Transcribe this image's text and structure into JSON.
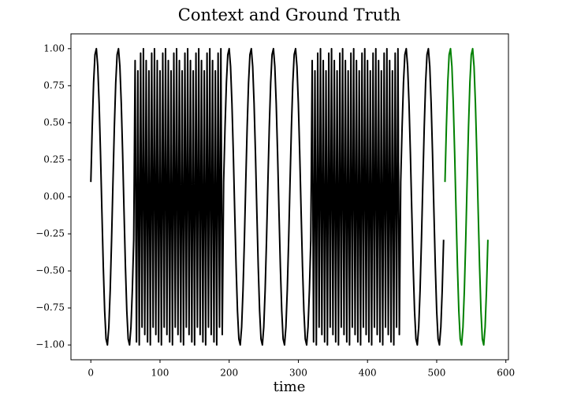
{
  "chart_data": {
    "type": "line",
    "title": "Context and Ground Truth",
    "x_label": "time",
    "xlim": [
      -28.75,
      603.75
    ],
    "ylim": [
      -1.1,
      1.1
    ],
    "xticks": [
      0,
      100,
      200,
      300,
      400,
      500,
      600
    ],
    "yticks": [
      {
        "value": -1,
        "label": "−1.00"
      },
      {
        "value": -0.75,
        "label": "−0.75"
      },
      {
        "value": -0.5,
        "label": "−0.50"
      },
      {
        "value": -0.25,
        "label": "−0.25"
      },
      {
        "value": 0,
        "label": "0.00"
      },
      {
        "value": 0.25,
        "label": "0.25"
      },
      {
        "value": 0.5,
        "label": "0.50"
      },
      {
        "value": 0.75,
        "label": "0.75"
      },
      {
        "value": 1,
        "label": "1.00"
      }
    ],
    "series": [
      {
        "color": "#000000",
        "x": [
          0,
          2,
          4,
          6,
          8,
          10,
          12,
          14,
          16,
          18,
          20,
          22,
          24,
          26,
          28,
          30,
          32,
          34,
          36,
          38,
          40,
          42,
          44,
          46,
          48,
          50,
          52,
          54,
          56,
          58,
          60,
          62,
          64,
          66,
          68,
          70,
          72,
          74,
          76,
          78,
          80,
          82,
          84,
          86,
          88,
          90,
          92,
          94,
          96,
          98,
          100,
          102,
          104,
          106,
          108,
          110,
          112,
          114,
          116,
          118,
          120,
          122,
          124,
          126,
          128,
          130,
          132,
          134,
          136,
          138,
          140,
          142,
          144,
          146,
          148,
          150,
          152,
          154,
          156,
          158,
          160,
          162,
          164,
          166,
          168,
          170,
          172,
          174,
          176,
          178,
          180,
          182,
          184,
          186,
          188,
          190,
          192,
          194,
          196,
          198,
          200,
          202,
          204,
          206,
          208,
          210,
          212,
          214,
          216,
          218,
          220,
          222,
          224,
          226,
          228,
          230,
          232,
          234,
          236,
          238,
          240,
          242,
          244,
          246,
          248,
          250,
          252,
          254,
          256,
          258,
          260,
          262,
          264,
          266,
          268,
          270,
          272,
          274,
          276,
          278,
          280,
          282,
          284,
          286,
          288,
          290,
          292,
          294,
          296,
          298,
          300,
          302,
          304,
          306,
          308,
          310,
          312,
          314,
          316,
          318,
          320,
          322,
          324,
          326,
          328,
          330,
          332,
          334,
          336,
          338,
          340,
          342,
          344,
          346,
          348,
          350,
          352,
          354,
          356,
          358,
          360,
          362,
          364,
          366,
          368,
          370,
          372,
          374,
          376,
          378,
          380,
          382,
          384,
          386,
          388,
          390,
          392,
          394,
          396,
          398,
          400,
          402,
          404,
          406,
          408,
          410,
          412,
          414,
          416,
          418,
          420,
          422,
          424,
          426,
          428,
          430,
          432,
          434,
          436,
          438,
          440,
          442,
          444,
          446,
          448,
          450,
          452,
          454,
          456,
          458,
          460,
          462,
          464,
          466,
          468,
          470,
          472,
          474,
          476,
          478,
          480,
          482,
          484,
          486,
          488,
          490,
          492,
          494,
          496,
          498,
          500,
          502,
          504,
          506,
          508,
          510
        ],
        "values": [
          0.1,
          0.47,
          0.77,
          0.96,
          1.0,
          0.88,
          0.63,
          0.29,
          -0.1,
          -0.47,
          -0.77,
          -0.96,
          -1.0,
          -0.88,
          -0.63,
          -0.29,
          0.1,
          0.47,
          0.77,
          0.96,
          1.0,
          0.88,
          0.63,
          0.29,
          -0.1,
          -0.47,
          -0.77,
          -0.96,
          -1.0,
          -0.88,
          -0.63,
          -0.29,
          0.92,
          -0.98,
          0.85,
          -1.0,
          0.97,
          -0.88,
          1.0,
          -0.93,
          0.92,
          -0.98,
          0.85,
          -1.0,
          0.97,
          -0.88,
          1.0,
          -0.93,
          0.92,
          -0.98,
          0.85,
          -1.0,
          0.97,
          -0.88,
          1.0,
          -0.93,
          0.92,
          -0.98,
          0.85,
          -1.0,
          0.97,
          -0.88,
          1.0,
          -0.93,
          0.92,
          -0.98,
          0.85,
          -1.0,
          0.97,
          -0.88,
          1.0,
          -0.93,
          0.92,
          -0.98,
          0.85,
          -1.0,
          0.97,
          -0.88,
          1.0,
          -0.93,
          0.92,
          -0.98,
          0.85,
          -1.0,
          0.97,
          -0.88,
          1.0,
          -0.93,
          0.92,
          -0.98,
          0.85,
          -1.0,
          0.97,
          -0.88,
          1.0,
          -0.93,
          0.1,
          0.47,
          0.77,
          0.96,
          1.0,
          0.88,
          0.63,
          0.29,
          -0.1,
          -0.47,
          -0.77,
          -0.96,
          -1.0,
          -0.88,
          -0.63,
          -0.29,
          0.1,
          0.47,
          0.77,
          0.96,
          1.0,
          0.88,
          0.63,
          0.29,
          -0.1,
          -0.47,
          -0.77,
          -0.96,
          -1.0,
          -0.88,
          -0.63,
          -0.29,
          0.1,
          0.47,
          0.77,
          0.96,
          1.0,
          0.88,
          0.63,
          0.29,
          -0.1,
          -0.47,
          -0.77,
          -0.96,
          -1.0,
          -0.88,
          -0.63,
          -0.29,
          0.1,
          0.47,
          0.77,
          0.96,
          1.0,
          0.88,
          0.63,
          0.29,
          -0.1,
          -0.47,
          -0.77,
          -0.96,
          -1.0,
          -0.88,
          -0.63,
          -0.29,
          0.92,
          -0.98,
          0.85,
          -1.0,
          0.97,
          -0.88,
          1.0,
          -0.93,
          0.92,
          -0.98,
          0.85,
          -1.0,
          0.97,
          -0.88,
          1.0,
          -0.93,
          0.92,
          -0.98,
          0.85,
          -1.0,
          0.97,
          -0.88,
          1.0,
          -0.93,
          0.92,
          -0.98,
          0.85,
          -1.0,
          0.97,
          -0.88,
          1.0,
          -0.93,
          0.92,
          -0.98,
          0.85,
          -1.0,
          0.97,
          -0.88,
          1.0,
          -0.93,
          0.92,
          -0.98,
          0.85,
          -1.0,
          0.97,
          -0.88,
          1.0,
          -0.93,
          0.92,
          -0.98,
          0.85,
          -1.0,
          0.97,
          -0.88,
          1.0,
          -0.93,
          0.92,
          -0.98,
          0.85,
          -1.0,
          0.97,
          -0.88,
          1.0,
          -0.93,
          0.1,
          0.47,
          0.77,
          0.96,
          1.0,
          0.88,
          0.63,
          0.29,
          -0.1,
          -0.47,
          -0.77,
          -0.96,
          -1.0,
          -0.88,
          -0.63,
          -0.29,
          0.1,
          0.47,
          0.77,
          0.96,
          1.0,
          0.88,
          0.63,
          0.29,
          -0.1,
          -0.47,
          -0.77,
          -0.96,
          -1.0,
          -0.88,
          -0.63,
          -0.29
        ]
      },
      {
        "color": "#008000",
        "x": [
          512,
          514,
          516,
          518,
          520,
          522,
          524,
          526,
          528,
          530,
          532,
          534,
          536,
          538,
          540,
          542,
          544,
          546,
          548,
          550,
          552,
          554,
          556,
          558,
          560,
          562,
          564,
          566,
          568,
          570,
          572,
          574
        ],
        "values": [
          0.1,
          0.47,
          0.77,
          0.96,
          1.0,
          0.88,
          0.63,
          0.29,
          -0.1,
          -0.47,
          -0.77,
          -0.96,
          -1.0,
          -0.88,
          -0.63,
          -0.29,
          0.1,
          0.47,
          0.77,
          0.96,
          1.0,
          0.88,
          0.63,
          0.29,
          -0.1,
          -0.47,
          -0.77,
          -0.96,
          -1.0,
          -0.88,
          -0.63,
          -0.29
        ]
      }
    ]
  }
}
